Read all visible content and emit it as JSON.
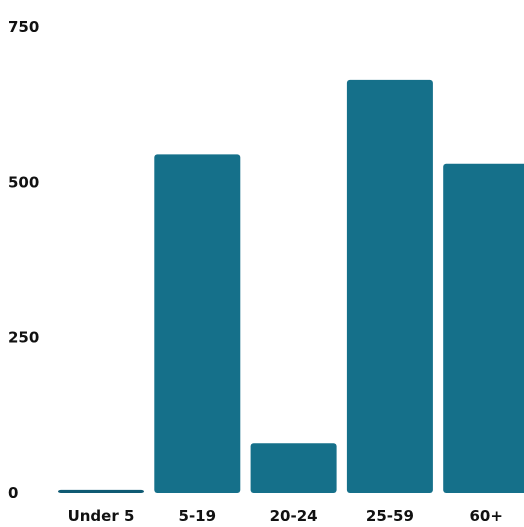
{
  "colors": {
    "bar": "#15708a",
    "bar_dark": "#0f5a73",
    "text": "#111111",
    "background": "#ffffff"
  },
  "chart_data": {
    "type": "bar",
    "title": "",
    "xlabel": "",
    "ylabel": "",
    "categories": [
      "Under 5",
      "5-19",
      "20-24",
      "25-59",
      "60+"
    ],
    "values": [
      5,
      545,
      80,
      665,
      530
    ],
    "ylim": [
      0,
      750
    ],
    "yticks": [
      0,
      250,
      500,
      750
    ],
    "ytick_labels": [
      "0",
      "250",
      "500",
      "750"
    ],
    "grid": false,
    "legend": "none"
  }
}
